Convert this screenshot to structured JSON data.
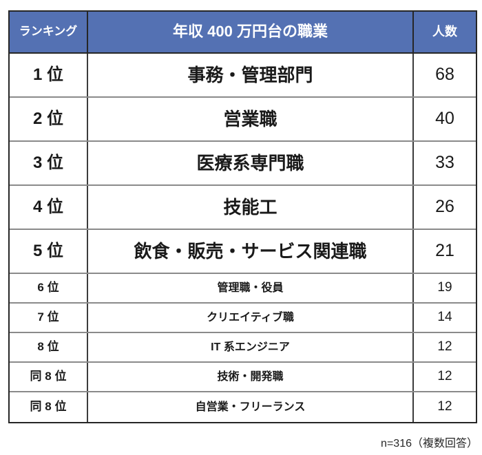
{
  "table": {
    "headers": {
      "rank": "ランキング",
      "occupation": "年収 400 万円台の職業",
      "count": "人数"
    },
    "rows": [
      {
        "rank": "1 位",
        "occupation": "事務・管理部門",
        "count": "68",
        "emphasis": true
      },
      {
        "rank": "2 位",
        "occupation": "営業職",
        "count": "40",
        "emphasis": true
      },
      {
        "rank": "3 位",
        "occupation": "医療系専門職",
        "count": "33",
        "emphasis": true
      },
      {
        "rank": "4 位",
        "occupation": "技能工",
        "count": "26",
        "emphasis": true
      },
      {
        "rank": "5 位",
        "occupation": "飲食・販売・サービス関連職",
        "count": "21",
        "emphasis": true
      },
      {
        "rank": "6 位",
        "occupation": "管理職・役員",
        "count": "19",
        "emphasis": false
      },
      {
        "rank": "7 位",
        "occupation": "クリエイティブ職",
        "count": "14",
        "emphasis": false
      },
      {
        "rank": "8 位",
        "occupation": "IT 系エンジニア",
        "count": "12",
        "emphasis": false
      },
      {
        "rank": "同 8 位",
        "occupation": "技術・開発職",
        "count": "12",
        "emphasis": false
      },
      {
        "rank": "同 8 位",
        "occupation": "自営業・フリーランス",
        "count": "12",
        "emphasis": false
      }
    ],
    "footnote": "n=316（複数回答）"
  },
  "colors": {
    "header_bg": "#5471B3",
    "header_text": "#ffffff",
    "body_text": "#1a1a1a",
    "outer_border": "#262626",
    "inner_vertical_border": "#3b3b3b",
    "inner_horizontal_border": "#8a8a8a"
  },
  "chart_data": {
    "type": "table",
    "title": "年収 400 万円台の職業",
    "columns": [
      "ランキング",
      "年収 400 万円台の職業",
      "人数"
    ],
    "ranks": [
      "1位",
      "2位",
      "3位",
      "4位",
      "5位",
      "6位",
      "7位",
      "8位",
      "同8位",
      "同8位"
    ],
    "categories": [
      "事務・管理部門",
      "営業職",
      "医療系専門職",
      "技能工",
      "飲食・販売・サービス関連職",
      "管理職・役員",
      "クリエイティブ職",
      "IT系エンジニア",
      "技術・開発職",
      "自営業・フリーランス"
    ],
    "values": [
      68,
      40,
      33,
      26,
      21,
      19,
      14,
      12,
      12,
      12
    ],
    "annotations": [
      "n=316（複数回答）"
    ],
    "legend_position": "none",
    "grid": true
  }
}
